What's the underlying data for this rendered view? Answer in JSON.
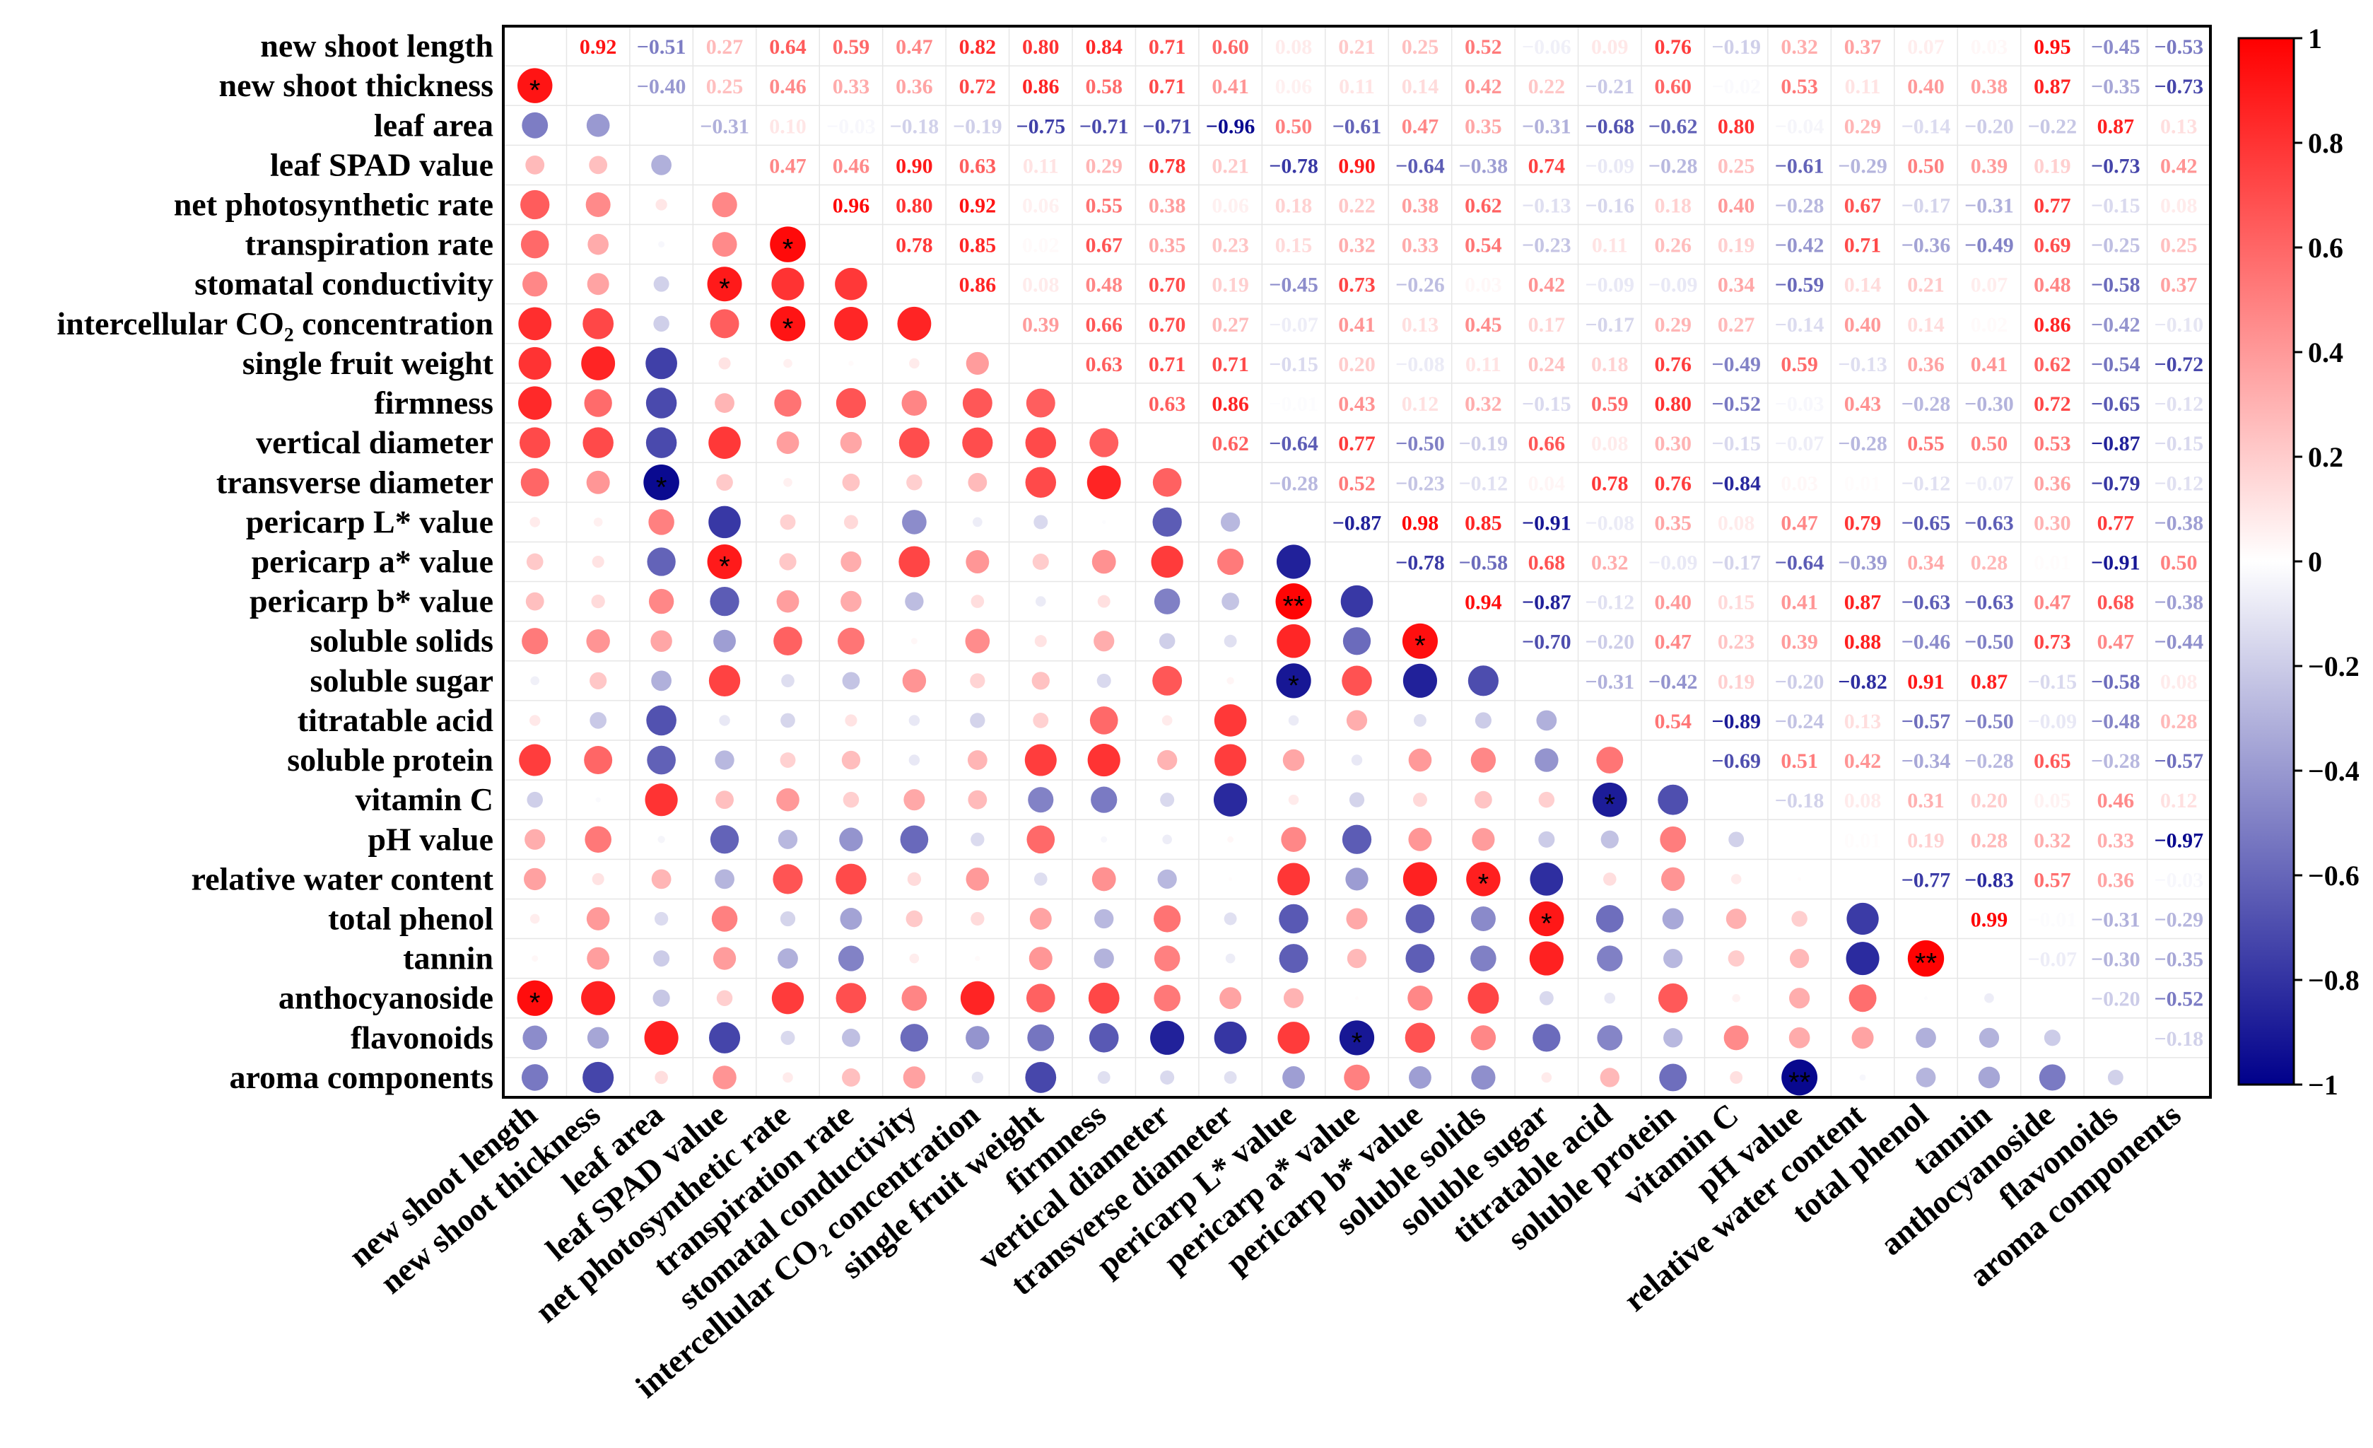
{
  "chart_data": {
    "type": "heatmap",
    "title": "",
    "variables": [
      "new shoot length",
      "new shoot thickness",
      "leaf area",
      "leaf SPAD value",
      "net photosynthetic rate",
      "transpiration rate",
      "stomatal conductivity",
      "intercellular CO₂ concentration",
      "single fruit weight",
      "firmness",
      "vertical diameter",
      "transverse diameter",
      "pericarp L* value",
      "pericarp a* value",
      "pericarp b* value",
      "soluble solids",
      "soluble sugar",
      "titratable acid",
      "soluble protein",
      "vitamin C",
      "pH value",
      "relative water content",
      "total phenol",
      "tannin",
      "anthocyanoside",
      "flavonoids",
      "aroma components"
    ],
    "upper_triangle_text": [
      [
        "",
        "0.92",
        "−0.51",
        "0.27",
        "0.64",
        "0.59",
        "0.47",
        "0.82",
        "0.80",
        "0.84",
        "0.71",
        "0.60",
        "0.08",
        "0.21",
        "0.25",
        "0.52",
        "−0.06",
        "0.09",
        "0.76",
        "−0.19",
        "0.32",
        "0.37",
        "0.07",
        "0.03",
        "0.95",
        "−0.45",
        "−0.53"
      ],
      [
        "",
        "",
        "−0.40",
        "0.25",
        "0.46",
        "0.33",
        "0.36",
        "0.72",
        "0.86",
        "0.58",
        "0.71",
        "0.41",
        "0.06",
        "0.11",
        "0.14",
        "0.42",
        "0.22",
        "−0.21",
        "0.60",
        "−0.02",
        "0.53",
        "0.11",
        "0.40",
        "0.38",
        "0.87",
        "−0.35",
        "−0.73"
      ],
      [
        "",
        "",
        "",
        "−0.31",
        "0.10",
        "−0.03",
        "−0.18",
        "−0.19",
        "−0.75",
        "−0.71",
        "−0.71",
        "−0.96",
        "0.50",
        "−0.61",
        "0.47",
        "0.35",
        "−0.31",
        "−0.68",
        "−0.62",
        "0.80",
        "−0.04",
        "0.29",
        "−0.14",
        "−0.20",
        "−0.22",
        "0.87",
        "0.13"
      ],
      [
        "",
        "",
        "",
        "",
        "0.47",
        "0.46",
        "0.90",
        "0.63",
        "0.11",
        "0.29",
        "0.78",
        "0.21",
        "−0.78",
        "0.90",
        "−0.64",
        "−0.38",
        "0.74",
        "−0.09",
        "−0.28",
        "0.25",
        "−0.61",
        "−0.29",
        "0.50",
        "0.39",
        "0.19",
        "−0.73",
        "0.42"
      ],
      [
        "",
        "",
        "",
        "",
        "",
        "0.96",
        "0.80",
        "0.92",
        "0.06",
        "0.55",
        "0.38",
        "0.06",
        "0.18",
        "0.22",
        "0.38",
        "0.62",
        "−0.13",
        "−0.16",
        "0.18",
        "0.40",
        "−0.28",
        "0.67",
        "−0.17",
        "−0.31",
        "0.77",
        "−0.15",
        "0.08"
      ],
      [
        "",
        "",
        "",
        "",
        "",
        "",
        "0.78",
        "0.85",
        "0.02",
        "0.67",
        "0.35",
        "0.23",
        "0.15",
        "0.32",
        "0.33",
        "0.54",
        "−0.23",
        "0.11",
        "0.26",
        "0.19",
        "−0.42",
        "0.71",
        "−0.36",
        "−0.49",
        "0.69",
        "−0.25",
        "0.25"
      ],
      [
        "",
        "",
        "",
        "",
        "",
        "",
        "",
        "0.86",
        "0.08",
        "0.48",
        "0.70",
        "0.19",
        "−0.45",
        "0.73",
        "−0.26",
        "0.03",
        "0.42",
        "−0.09",
        "−0.09",
        "0.34",
        "−0.59",
        "0.14",
        "0.21",
        "0.07",
        "0.48",
        "−0.58",
        "0.37"
      ],
      [
        "",
        "",
        "",
        "",
        "",
        "",
        "",
        "",
        "0.39",
        "0.66",
        "0.70",
        "0.27",
        "−0.07",
        "0.41",
        "0.13",
        "0.45",
        "0.17",
        "−0.17",
        "0.29",
        "0.27",
        "−0.14",
        "0.40",
        "0.14",
        "0.02",
        "0.86",
        "−0.42",
        "−0.10"
      ],
      [
        "",
        "",
        "",
        "",
        "",
        "",
        "",
        "",
        "",
        "0.63",
        "0.71",
        "0.71",
        "−0.15",
        "0.20",
        "−0.08",
        "0.11",
        "0.24",
        "0.18",
        "0.76",
        "−0.49",
        "0.59",
        "−0.13",
        "0.36",
        "0.41",
        "0.62",
        "−0.54",
        "−0.72"
      ],
      [
        "",
        "",
        "",
        "",
        "",
        "",
        "",
        "",
        "",
        "",
        "0.63",
        "0.86",
        "−0.01",
        "0.43",
        "0.12",
        "0.32",
        "−0.15",
        "0.59",
        "0.80",
        "−0.52",
        "−0.03",
        "0.43",
        "−0.28",
        "−0.30",
        "0.72",
        "−0.65",
        "−0.12"
      ],
      [
        "",
        "",
        "",
        "",
        "",
        "",
        "",
        "",
        "",
        "",
        "",
        "0.62",
        "−0.64",
        "0.77",
        "−0.50",
        "−0.19",
        "0.66",
        "0.08",
        "0.30",
        "−0.15",
        "−0.07",
        "−0.28",
        "0.55",
        "0.50",
        "0.53",
        "−0.87",
        "−0.15"
      ],
      [
        "",
        "",
        "",
        "",
        "",
        "",
        "",
        "",
        "",
        "",
        "",
        "",
        "−0.28",
        "0.52",
        "−0.23",
        "−0.12",
        "0.04",
        "0.78",
        "0.76",
        "−0.84",
        "0.03",
        "0.01",
        "−0.12",
        "−0.07",
        "0.36",
        "−0.79",
        "−0.12"
      ],
      [
        "",
        "",
        "",
        "",
        "",
        "",
        "",
        "",
        "",
        "",
        "",
        "",
        "",
        "−0.87",
        "0.98",
        "0.85",
        "−0.91",
        "−0.08",
        "0.35",
        "0.08",
        "0.47",
        "0.79",
        "−0.65",
        "−0.63",
        "0.30",
        "0.77",
        "−0.38"
      ],
      [
        "",
        "",
        "",
        "",
        "",
        "",
        "",
        "",
        "",
        "",
        "",
        "",
        "",
        "",
        "−0.78",
        "−0.58",
        "0.68",
        "0.32",
        "−0.09",
        "−0.17",
        "−0.64",
        "−0.39",
        "0.34",
        "0.28",
        "0.01",
        "−0.91",
        "0.50"
      ],
      [
        "",
        "",
        "",
        "",
        "",
        "",
        "",
        "",
        "",
        "",
        "",
        "",
        "",
        "",
        "",
        "0.94",
        "−0.87",
        "−0.12",
        "0.40",
        "0.15",
        "0.41",
        "0.87",
        "−0.63",
        "−0.63",
        "0.47",
        "0.68",
        "−0.38"
      ],
      [
        "",
        "",
        "",
        "",
        "",
        "",
        "",
        "",
        "",
        "",
        "",
        "",
        "",
        "",
        "",
        "",
        "−0.70",
        "−0.20",
        "0.47",
        "0.23",
        "0.39",
        "0.88",
        "−0.46",
        "−0.50",
        "0.73",
        "0.47",
        "−0.44"
      ],
      [
        "",
        "",
        "",
        "",
        "",
        "",
        "",
        "",
        "",
        "",
        "",
        "",
        "",
        "",
        "",
        "",
        "",
        "−0.31",
        "−0.42",
        "0.19",
        "−0.20",
        "−0.82",
        "0.91",
        "0.87",
        "−0.15",
        "−0.58",
        "0.08"
      ],
      [
        "",
        "",
        "",
        "",
        "",
        "",
        "",
        "",
        "",
        "",
        "",
        "",
        "",
        "",
        "",
        "",
        "",
        "",
        "0.54",
        "−0.89",
        "−0.24",
        "0.13",
        "−0.57",
        "−0.50",
        "−0.09",
        "−0.48",
        "0.28"
      ],
      [
        "",
        "",
        "",
        "",
        "",
        "",
        "",
        "",
        "",
        "",
        "",
        "",
        "",
        "",
        "",
        "",
        "",
        "",
        "",
        "−0.69",
        "0.51",
        "0.42",
        "−0.34",
        "−0.28",
        "0.65",
        "−0.28",
        "−0.57"
      ],
      [
        "",
        "",
        "",
        "",
        "",
        "",
        "",
        "",
        "",
        "",
        "",
        "",
        "",
        "",
        "",
        "",
        "",
        "",
        "",
        "",
        "−0.18",
        "0.08",
        "0.31",
        "0.20",
        "0.05",
        "0.46",
        "0.12"
      ],
      [
        "",
        "",
        "",
        "",
        "",
        "",
        "",
        "",
        "",
        "",
        "",
        "",
        "",
        "",
        "",
        "",
        "",
        "",
        "",
        "",
        "",
        "0.01",
        "0.19",
        "0.28",
        "0.32",
        "0.33",
        "−0.97"
      ],
      [
        "",
        "",
        "",
        "",
        "",
        "",
        "",
        "",
        "",
        "",
        "",
        "",
        "",
        "",
        "",
        "",
        "",
        "",
        "",
        "",
        "",
        "",
        "−0.77",
        "−0.83",
        "0.57",
        "0.36",
        "−0.03"
      ],
      [
        "",
        "",
        "",
        "",
        "",
        "",
        "",
        "",
        "",
        "",
        "",
        "",
        "",
        "",
        "",
        "",
        "",
        "",
        "",
        "",
        "",
        "",
        "",
        "0.99",
        "−0.01",
        "−0.31",
        "−0.29"
      ],
      [
        "",
        "",
        "",
        "",
        "",
        "",
        "",
        "",
        "",
        "",
        "",
        "",
        "",
        "",
        "",
        "",
        "",
        "",
        "",
        "",
        "",
        "",
        "",
        "",
        "−0.07",
        "−0.30",
        "−0.35"
      ],
      [
        "",
        "",
        "",
        "",
        "",
        "",
        "",
        "",
        "",
        "",
        "",
        "",
        "",
        "",
        "",
        "",
        "",
        "",
        "",
        "",
        "",
        "",
        "",
        "",
        "",
        "−0.20",
        "−0.52"
      ],
      [
        "",
        "",
        "",
        "",
        "",
        "",
        "",
        "",
        "",
        "",
        "",
        "",
        "",
        "",
        "",
        "",
        "",
        "",
        "",
        "",
        "",
        "",
        "",
        "",
        "",
        "",
        "−0.18"
      ],
      [
        "",
        "",
        "",
        "",
        "",
        "",
        "",
        "",
        "",
        "",
        "",
        "",
        "",
        "",
        "",
        "",
        "",
        "",
        "",
        "",
        "",
        "",
        "",
        "",
        "",
        "",
        ""
      ]
    ],
    "significance_marks": [
      {
        "row": 1,
        "col": 0,
        "mark": "*"
      },
      {
        "row": 5,
        "col": 4,
        "mark": "*"
      },
      {
        "row": 6,
        "col": 3,
        "mark": "*"
      },
      {
        "row": 7,
        "col": 4,
        "mark": "*"
      },
      {
        "row": 11,
        "col": 2,
        "mark": "*"
      },
      {
        "row": 13,
        "col": 3,
        "mark": "*"
      },
      {
        "row": 14,
        "col": 12,
        "mark": "**"
      },
      {
        "row": 15,
        "col": 14,
        "mark": "*"
      },
      {
        "row": 16,
        "col": 12,
        "mark": "*"
      },
      {
        "row": 19,
        "col": 17,
        "mark": "*"
      },
      {
        "row": 21,
        "col": 15,
        "mark": "*"
      },
      {
        "row": 22,
        "col": 16,
        "mark": "*"
      },
      {
        "row": 23,
        "col": 22,
        "mark": "**"
      },
      {
        "row": 24,
        "col": 0,
        "mark": "*"
      },
      {
        "row": 25,
        "col": 13,
        "mark": "*"
      },
      {
        "row": 26,
        "col": 20,
        "mark": "**"
      }
    ],
    "colorbar": {
      "range": [
        -1,
        1
      ],
      "ticks": [
        "1",
        "0.8",
        "0.6",
        "0.4",
        "0.2",
        "0",
        "−0.2",
        "−0.4",
        "−0.6",
        "−0.8",
        "−1"
      ],
      "low_color": "#00008b",
      "mid_color": "#ffffff",
      "high_color": "#ff0000"
    },
    "lower_triangle": "circles sized and colored by correlation value",
    "upper_triangle": "correlation coefficient text colored by value"
  }
}
